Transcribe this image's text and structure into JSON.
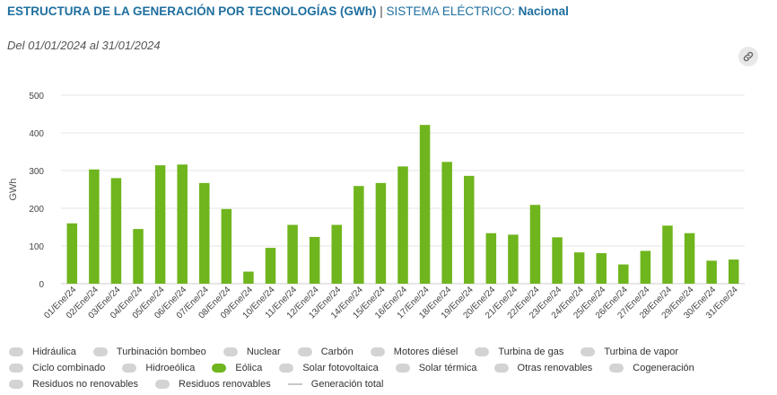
{
  "header": {
    "title": "ESTRUCTURA DE LA GENERACIÓN POR TECNOLOGÍAS (GWh)",
    "separator": "|",
    "system_label": "SISTEMA ELÉCTRICO:",
    "system_value": "Nacional",
    "date_range": "Del 01/01/2024 al 31/01/2024"
  },
  "icons": {
    "link": "link-icon"
  },
  "legend": [
    {
      "label": "Hidráulica",
      "color": "#d3d3d3",
      "shape": "pill"
    },
    {
      "label": "Turbinación bombeo",
      "color": "#d3d3d3",
      "shape": "pill"
    },
    {
      "label": "Nuclear",
      "color": "#d3d3d3",
      "shape": "pill"
    },
    {
      "label": "Carbón",
      "color": "#d3d3d3",
      "shape": "pill"
    },
    {
      "label": "Motores diésel",
      "color": "#d3d3d3",
      "shape": "pill"
    },
    {
      "label": "Turbina de gas",
      "color": "#d3d3d3",
      "shape": "pill"
    },
    {
      "label": "Turbina de vapor",
      "color": "#d3d3d3",
      "shape": "pill"
    },
    {
      "label": "Ciclo combinado",
      "color": "#d3d3d3",
      "shape": "pill"
    },
    {
      "label": "Hidroeólica",
      "color": "#d3d3d3",
      "shape": "pill"
    },
    {
      "label": "Eólica",
      "color": "#6fb51d",
      "shape": "pill"
    },
    {
      "label": "Solar fotovoltaica",
      "color": "#d3d3d3",
      "shape": "pill"
    },
    {
      "label": "Solar térmica",
      "color": "#d3d3d3",
      "shape": "pill"
    },
    {
      "label": "Otras renovables",
      "color": "#d3d3d3",
      "shape": "pill"
    },
    {
      "label": "Cogeneración",
      "color": "#d3d3d3",
      "shape": "pill"
    },
    {
      "label": "Residuos no renovables",
      "color": "#d3d3d3",
      "shape": "pill"
    },
    {
      "label": "Residuos renovables",
      "color": "#d3d3d3",
      "shape": "pill"
    },
    {
      "label": "Generación total",
      "color": "#c8c8c8",
      "shape": "line"
    }
  ],
  "chart_data": {
    "type": "bar",
    "ylabel": "GWh",
    "ylim": [
      0,
      500
    ],
    "yticks": [
      0,
      100,
      200,
      300,
      400,
      500
    ],
    "grid": true,
    "legend_position": "bottom",
    "bar_color": "#6fb51d",
    "categories": [
      "01/Ene/24",
      "02/Ene/24",
      "03/Ene/24",
      "04/Ene/24",
      "05/Ene/24",
      "06/Ene/24",
      "07/Ene/24",
      "08/Ene/24",
      "09/Ene/24",
      "10/Ene/24",
      "11/Ene/24",
      "12/Ene/24",
      "13/Ene/24",
      "14/Ene/24",
      "15/Ene/24",
      "16/Ene/24",
      "17/Ene/24",
      "18/Ene/24",
      "19/Ene/24",
      "20/Ene/24",
      "21/Ene/24",
      "22/Ene/24",
      "23/Ene/24",
      "24/Ene/24",
      "25/Ene/24",
      "26/Ene/24",
      "27/Ene/24",
      "28/Ene/24",
      "29/Ene/24",
      "30/Ene/24",
      "31/Ene/24"
    ],
    "series": [
      {
        "name": "Eólica",
        "values": [
          160,
          303,
          280,
          145,
          314,
          316,
          267,
          198,
          32,
          95,
          156,
          124,
          156,
          259,
          267,
          311,
          421,
          323,
          286,
          134,
          130,
          209,
          123,
          83,
          81,
          51,
          87,
          154,
          134,
          61,
          64
        ]
      }
    ]
  }
}
